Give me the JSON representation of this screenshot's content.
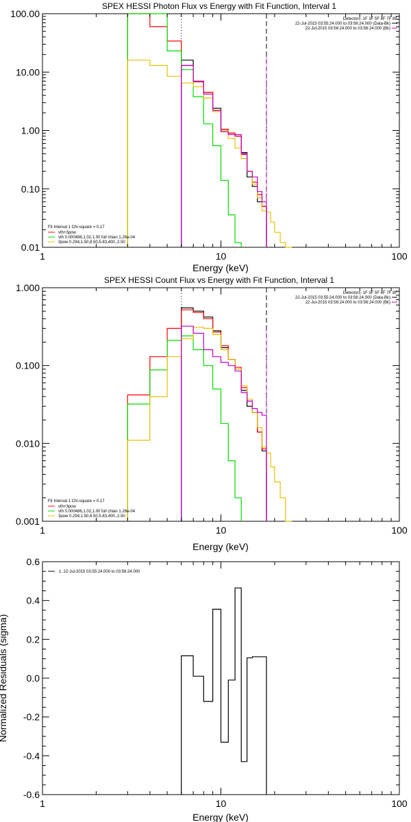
{
  "chart_data": [
    {
      "type": "line",
      "title": "SPEX HESSI Photon Flux vs Energy with Fit Function, Interval 1",
      "xlabel": "Energy (keV)",
      "ylabel": "",
      "xscale": "log",
      "yscale": "log",
      "xlim": [
        1,
        100
      ],
      "ylim": [
        0.01,
        100
      ],
      "xticks": [
        "1",
        "10",
        "100"
      ],
      "yticks": [
        "0.01",
        "0.10",
        "1.00",
        "10.00",
        "100.00"
      ],
      "vlines": [
        {
          "x": 6.0,
          "style": "dotted",
          "color": "#000000"
        },
        {
          "x": 6.0,
          "style": "solid",
          "color": "#c000c0"
        },
        {
          "x": 18.0,
          "style": "dashed",
          "color": "#000000"
        },
        {
          "x": 18.0,
          "style": "solid",
          "color": "#c000c0"
        }
      ],
      "detector_text": "Detectors: 1F 3F 5F 6F 7F 8F",
      "time_labels": [
        {
          "text": "22-Jul-2015 03:55:24.000 to 03:56:24.000 (Data-Bk)",
          "color": "#000000"
        },
        {
          "text": "22-Jul-2015 03:56:24.000 to 03:56:24.000 (Bk)",
          "color": "#c000c0"
        }
      ],
      "fit_text": "Fit Interval 1    Chi-square = 0.17",
      "legend_placement": "bottom-left",
      "series": [
        {
          "name": "Data-Bk",
          "color": "#000000",
          "edges": [
            6.0,
            7.0,
            8.0,
            9.0,
            10.0,
            11.0,
            12.0,
            13.0,
            14.0,
            15.0,
            16.0,
            17.0,
            18.0
          ],
          "values": [
            16.0,
            7.0,
            4.5,
            2.4,
            1.05,
            0.9,
            0.8,
            0.42,
            0.16,
            0.11,
            0.06,
            0.05
          ]
        },
        {
          "name": "vth+3pow",
          "color": "#ff0000",
          "edges": [
            3.0,
            4.0,
            5.0,
            6.0,
            7.0,
            8.0,
            9.0,
            10.0,
            11.0,
            12.0,
            13.0,
            14.0,
            15.0,
            16.0,
            17.0,
            18.0
          ],
          "values": [
            100,
            60.0,
            34.0,
            13.0,
            6.8,
            4.5,
            2.2,
            1.05,
            0.9,
            0.8,
            0.39,
            0.2,
            0.13,
            0.08,
            0.05
          ]
        },
        {
          "name": "vth 0.000486,1.02,1.00 full chian 1.26e-04",
          "color": "#00dd00",
          "edges": [
            3.0,
            4.0,
            5.0,
            6.0,
            7.0,
            8.0,
            9.0,
            10.0,
            11.0,
            12.0,
            13.0
          ],
          "values": [
            100,
            100,
            23.0,
            11.0,
            3.8,
            1.3,
            0.55,
            0.14,
            0.036,
            0.012
          ]
        },
        {
          "name": "3pow 0.294,1.50,8.50,5.83,400.,2.50",
          "color": "#e8c000",
          "edges": [
            3.0,
            4.0,
            5.0,
            6.0,
            7.0,
            8.0,
            9.0,
            10.0,
            11.0,
            12.0,
            13.0,
            14.0,
            15.0,
            16.0,
            17.0,
            18.0,
            19.0,
            20.0,
            21.5,
            23.0,
            25.0
          ],
          "values": [
            16.0,
            13.0,
            8.5,
            6.5,
            5.6,
            3.6,
            2.1,
            1.0,
            0.73,
            0.5,
            0.33,
            0.2,
            0.12,
            0.07,
            0.042,
            0.04,
            0.027,
            0.018,
            0.012,
            0.01
          ]
        },
        {
          "name": "Bk",
          "color": "#c000c0",
          "edges": [
            6.0,
            7.0,
            8.0,
            9.0,
            10.0,
            11.0,
            12.0,
            13.0,
            14.0,
            15.0,
            16.0,
            17.0,
            18.0
          ],
          "values": [
            13.0,
            7.0,
            4.2,
            2.2,
            0.95,
            0.85,
            0.85,
            0.4,
            0.2,
            0.16,
            0.09,
            0.06
          ]
        }
      ]
    },
    {
      "type": "line",
      "title": "SPEX HESSI Count Flux vs Energy with Fit Function, Interval 1",
      "xlabel": "Energy (keV)",
      "ylabel": "",
      "xscale": "log",
      "yscale": "log",
      "xlim": [
        1,
        100
      ],
      "ylim": [
        0.001,
        1
      ],
      "xticks": [
        "1",
        "10",
        "100"
      ],
      "yticks": [
        "0.001",
        "0.010",
        "0.100",
        "1.000"
      ],
      "vlines": [
        {
          "x": 6.0,
          "style": "dotted",
          "color": "#000000"
        },
        {
          "x": 6.0,
          "style": "solid",
          "color": "#c000c0"
        },
        {
          "x": 18.0,
          "style": "dashed",
          "color": "#000000"
        },
        {
          "x": 18.0,
          "style": "solid",
          "color": "#c000c0"
        }
      ],
      "detector_text": "Detectors: 1F 3F 5F 6F 7F 8F",
      "time_labels": [
        {
          "text": "22-Jul-2015 03:55:24.000 to 03:56:24.000 (Data-Bk)",
          "color": "#000000"
        },
        {
          "text": "22-Jul-2015 03:56:24.000 to 03:56:24.000 (Bk)",
          "color": "#c000c0"
        }
      ],
      "fit_text": "Fit Interval 1    Chi-square = 0.17",
      "legend_placement": "bottom-left",
      "series": [
        {
          "name": "Data-Bk",
          "color": "#000000",
          "edges": [
            6.0,
            7.0,
            8.0,
            9.0,
            10.0,
            11.0,
            12.0,
            13.0,
            14.0,
            15.0,
            16.0,
            17.0,
            18.0
          ],
          "values": [
            0.55,
            0.5,
            0.42,
            0.28,
            0.17,
            0.12,
            0.09,
            0.048,
            0.03,
            0.025,
            0.014,
            0.008
          ]
        },
        {
          "name": "vth+3pow",
          "color": "#ff0000",
          "edges": [
            3.0,
            4.0,
            5.0,
            6.0,
            7.0,
            8.0,
            9.0,
            10.0,
            11.0,
            12.0,
            13.0,
            14.0,
            15.0,
            16.0,
            17.0,
            18.0
          ],
          "values": [
            0.042,
            0.13,
            0.3,
            0.52,
            0.48,
            0.4,
            0.27,
            0.18,
            0.12,
            0.095,
            0.052,
            0.035,
            0.025,
            0.014,
            0.0085
          ]
        },
        {
          "name": "vth 0.000486,1.02,1.00 full chian 1.26e-04",
          "color": "#00dd00",
          "edges": [
            3.0,
            4.0,
            5.0,
            6.0,
            7.0,
            8.0,
            9.0,
            10.0,
            11.0,
            12.0,
            13.0
          ],
          "values": [
            0.032,
            0.088,
            0.21,
            0.24,
            0.16,
            0.1,
            0.05,
            0.018,
            0.006,
            0.002
          ]
        },
        {
          "name": "3pow 0.294,1.50,8.50,5.83,400.,2.50",
          "color": "#e8c000",
          "edges": [
            3.0,
            4.0,
            5.0,
            6.0,
            7.0,
            8.0,
            9.0,
            10.0,
            11.0,
            12.0,
            13.0,
            14.0,
            15.0,
            16.0,
            17.0,
            18.0,
            19.0,
            20.0,
            21.5,
            23.0,
            25.0
          ],
          "values": [
            0.011,
            0.04,
            0.13,
            0.22,
            0.31,
            0.3,
            0.25,
            0.16,
            0.12,
            0.09,
            0.055,
            0.037,
            0.025,
            0.016,
            0.009,
            0.0075,
            0.005,
            0.0032,
            0.002,
            0.001
          ]
        },
        {
          "name": "Bk",
          "color": "#c000c0",
          "edges": [
            6.0,
            7.0,
            8.0,
            9.0,
            10.0,
            11.0,
            12.0,
            13.0,
            14.0,
            15.0,
            16.0,
            17.0,
            18.0
          ],
          "values": [
            0.32,
            0.26,
            0.16,
            0.13,
            0.11,
            0.1,
            0.085,
            0.045,
            0.035,
            0.028,
            0.025,
            0.023
          ]
        }
      ]
    },
    {
      "type": "line",
      "title": "",
      "xlabel": "Energy (keV)",
      "ylabel": "Normalized Residuals (sigma)",
      "xscale": "log",
      "yscale": "linear",
      "xlim": [
        1,
        100
      ],
      "ylim": [
        -0.6,
        0.6
      ],
      "xticks": [
        "1",
        "10",
        "100"
      ],
      "yticks": [
        "-0.6",
        "-0.4",
        "-0.2",
        "0.0",
        "0.2",
        "0.4",
        "0.6"
      ],
      "legend": "1. 22-Jul-2015 03:55:24.000 to 03:56:24.000",
      "legend_placement": "top-left",
      "series": [
        {
          "name": "1. 22-Jul-2015 03:55:24.000 to 03:56:24.000",
          "color": "#000000",
          "edges": [
            6.0,
            7.0,
            8.0,
            9.0,
            10.0,
            11.0,
            12.0,
            13.0,
            14.0,
            15.0,
            16.0,
            17.0,
            18.0
          ],
          "values": [
            0.115,
            0.01,
            -0.12,
            0.355,
            -0.33,
            -0.01,
            0.465,
            -0.43,
            0.105,
            0.11,
            0.11,
            0.11
          ]
        }
      ]
    }
  ]
}
